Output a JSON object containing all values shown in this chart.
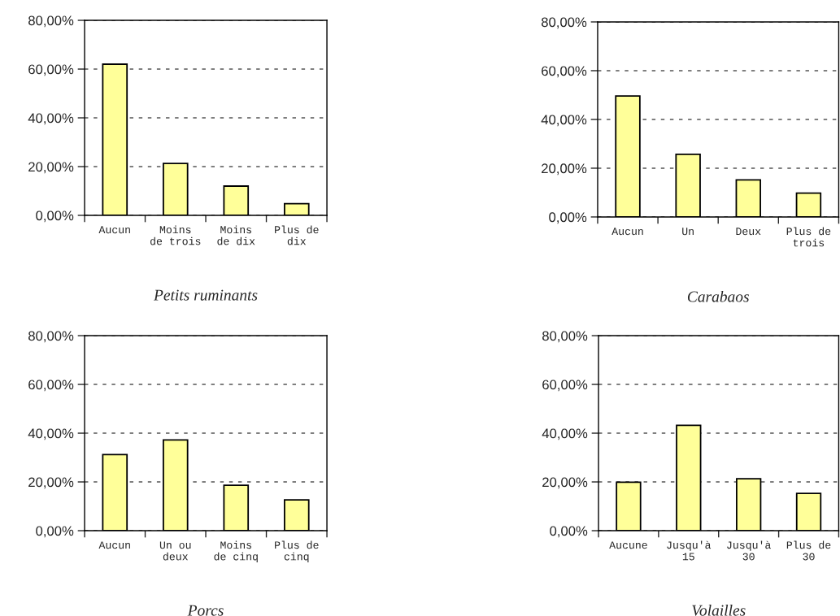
{
  "chart_data": [
    {
      "type": "bar",
      "title": "Petits ruminants",
      "categories": [
        "Aucun",
        "Moins\nde trois",
        "Moins\nde dix",
        "Plus de\ndix"
      ],
      "values": [
        62,
        21.3,
        12,
        4.8
      ],
      "color": "#ffff99",
      "ylim": [
        0,
        80
      ],
      "yticks": [
        {
          "value": 0,
          "label": "0,00%"
        },
        {
          "value": 20,
          "label": "20,00%"
        },
        {
          "value": 40,
          "label": "40,00%"
        },
        {
          "value": 60,
          "label": "60,00%"
        },
        {
          "value": 80,
          "label": "80,00%"
        }
      ],
      "grid": "y"
    },
    {
      "type": "bar",
      "title": "Carabaos",
      "categories": [
        "Aucun",
        "Un",
        "Deux",
        "Plus de\ntrois"
      ],
      "values": [
        49.6,
        25.7,
        15.2,
        9.8
      ],
      "color": "#ffff99",
      "ylim": [
        0,
        80
      ],
      "yticks": [
        {
          "value": 0,
          "label": "0,00%"
        },
        {
          "value": 20,
          "label": "20,00%"
        },
        {
          "value": 40,
          "label": "40,00%"
        },
        {
          "value": 60,
          "label": "60,00%"
        },
        {
          "value": 80,
          "label": "80,00%"
        }
      ],
      "grid": "y"
    },
    {
      "type": "bar",
      "title": "Porcs",
      "categories": [
        "Aucun",
        "Un ou\ndeux",
        "Moins\nde cinq",
        "Plus de\ncinq"
      ],
      "values": [
        31.2,
        37.2,
        18.6,
        12.6
      ],
      "color": "#ffff99",
      "ylim": [
        0,
        80
      ],
      "yticks": [
        {
          "value": 0,
          "label": "0,00%"
        },
        {
          "value": 20,
          "label": "20,00%"
        },
        {
          "value": 40,
          "label": "40,00%"
        },
        {
          "value": 60,
          "label": "60,00%"
        },
        {
          "value": 80,
          "label": "80,00%"
        }
      ],
      "grid": "y"
    },
    {
      "type": "bar",
      "title": "Volailles",
      "categories": [
        "Aucune",
        "Jusqu'à\n15",
        "Jusqu'à\n30",
        "Plus de\n30"
      ],
      "values": [
        19.9,
        43.2,
        21.3,
        15.3
      ],
      "color": "#ffff99",
      "ylim": [
        0,
        80
      ],
      "yticks": [
        {
          "value": 0,
          "label": "0,00%"
        },
        {
          "value": 20,
          "label": "20,00%"
        },
        {
          "value": 40,
          "label": "40,00%"
        },
        {
          "value": 60,
          "label": "60,00%"
        },
        {
          "value": 80,
          "label": "80,00%"
        }
      ],
      "grid": "y"
    }
  ]
}
